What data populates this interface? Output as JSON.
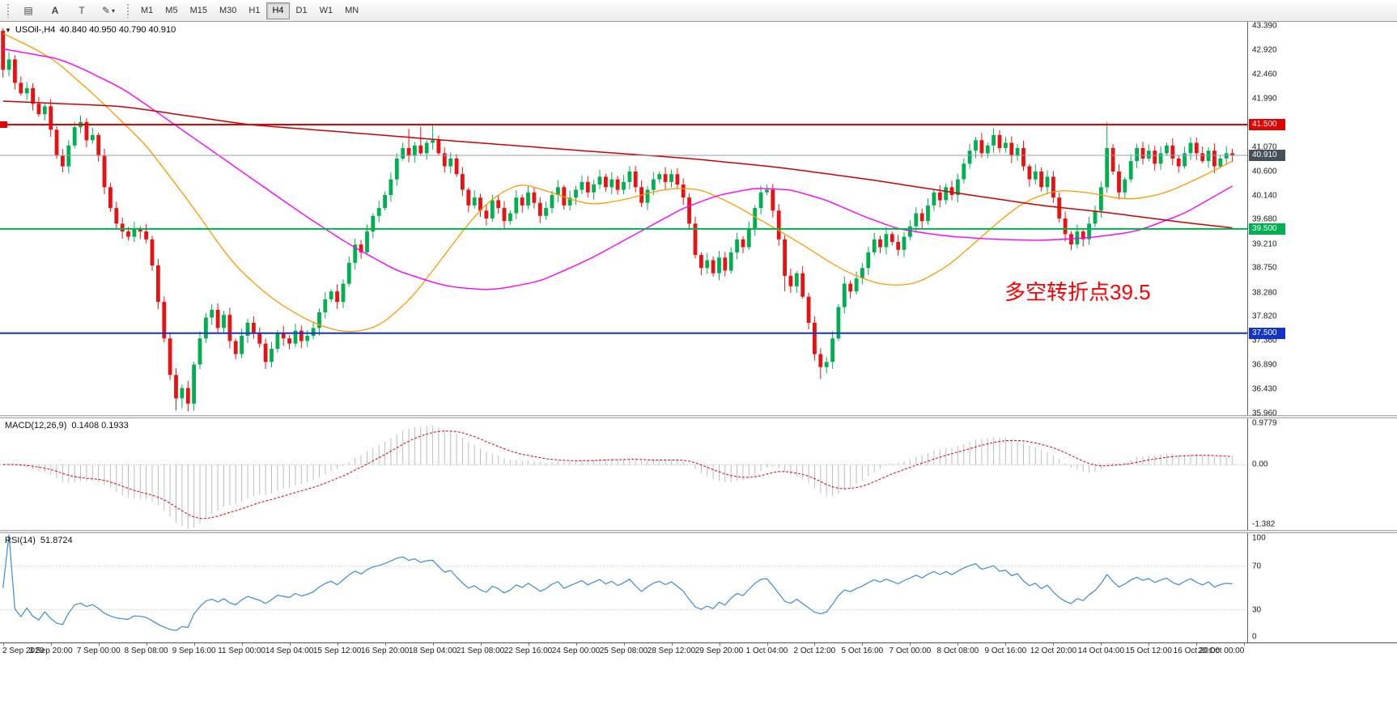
{
  "toolbar": {
    "tool_buttons": [
      {
        "name": "chart-window-icon",
        "glyph": "▤"
      },
      {
        "name": "text-label-icon",
        "glyph": "A"
      },
      {
        "name": "template-icon",
        "glyph": "T"
      },
      {
        "name": "draw-tools-icon",
        "glyph": "✎",
        "dropdown": true
      }
    ],
    "timeframes": [
      "M1",
      "M5",
      "M15",
      "M30",
      "H1",
      "H4",
      "D1",
      "W1",
      "MN"
    ],
    "active_timeframe": "H4"
  },
  "chart_data": [
    {
      "type": "candlestick",
      "title_symbol": "USOil-,H4",
      "title_ohlc": "40.840 40.950 40.790 40.910",
      "ylim": [
        35.93,
        43.47
      ],
      "y_ticks": [
        "43.390",
        "42.920",
        "42.460",
        "41.990",
        "41.530",
        "41.070",
        "40.600",
        "40.140",
        "39.680",
        "39.210",
        "38.750",
        "38.280",
        "37.820",
        "37.360",
        "36.890",
        "36.430",
        "35.960"
      ],
      "colors": {
        "up": "#00B050",
        "down": "#E81212"
      },
      "first_open": 43.3,
      "closes": [
        42.55,
        42.75,
        42.3,
        42.1,
        42.2,
        41.9,
        41.7,
        41.85,
        41.4,
        40.9,
        40.7,
        41.1,
        41.45,
        41.55,
        41.2,
        41.3,
        40.9,
        40.3,
        39.9,
        39.6,
        39.45,
        39.35,
        39.5,
        39.45,
        39.3,
        38.8,
        38.1,
        37.4,
        36.7,
        36.25,
        36.45,
        36.15,
        36.9,
        37.4,
        37.8,
        37.95,
        37.6,
        37.85,
        37.35,
        37.1,
        37.45,
        37.7,
        37.5,
        37.3,
        36.95,
        37.2,
        37.5,
        37.4,
        37.3,
        37.55,
        37.35,
        37.45,
        37.6,
        37.9,
        38.15,
        38.3,
        38.1,
        38.45,
        38.85,
        39.2,
        39.05,
        39.45,
        39.75,
        39.9,
        40.15,
        40.45,
        40.85,
        41.05,
        40.9,
        41.1,
        40.95,
        41.15,
        41.2,
        40.95,
        40.7,
        40.85,
        40.55,
        40.25,
        39.95,
        40.1,
        39.85,
        39.7,
        40.05,
        39.9,
        39.65,
        39.8,
        40.1,
        39.95,
        40.2,
        40.0,
        39.75,
        39.9,
        40.15,
        40.3,
        39.95,
        40.1,
        40.25,
        40.4,
        40.2,
        40.35,
        40.5,
        40.3,
        40.45,
        40.25,
        40.4,
        40.6,
        40.3,
        40.0,
        40.25,
        40.45,
        40.55,
        40.4,
        40.55,
        40.35,
        40.1,
        39.6,
        39.0,
        38.75,
        38.9,
        38.65,
        38.95,
        38.7,
        39.05,
        39.3,
        39.15,
        39.5,
        39.9,
        40.2,
        40.25,
        39.85,
        39.3,
        38.6,
        38.4,
        38.65,
        38.2,
        37.7,
        37.1,
        36.85,
        36.95,
        37.4,
        38.0,
        38.45,
        38.3,
        38.55,
        38.75,
        39.05,
        39.3,
        39.15,
        39.4,
        39.25,
        39.1,
        39.35,
        39.55,
        39.8,
        39.65,
        39.95,
        40.2,
        40.05,
        40.3,
        40.15,
        40.45,
        40.75,
        41.0,
        41.2,
        40.95,
        41.1,
        41.3,
        41.05,
        41.15,
        40.9,
        41.05,
        40.7,
        40.45,
        40.6,
        40.3,
        40.5,
        40.1,
        39.7,
        39.4,
        39.2,
        39.45,
        39.3,
        39.6,
        39.85,
        40.3,
        41.05,
        40.6,
        40.2,
        40.45,
        40.8,
        41.05,
        40.85,
        41.0,
        40.75,
        40.95,
        41.1,
        40.85,
        40.7,
        40.95,
        41.15,
        40.95,
        40.8,
        41.0,
        40.7,
        40.85,
        40.95,
        40.91
      ],
      "wick_overrides": {
        "0": {
          "h": 43.35,
          "l": 42.4
        },
        "29": {
          "l": 36.02
        },
        "30": {
          "l": 36.06
        },
        "31": {
          "l": 36.0
        },
        "68": {
          "h": 41.42
        },
        "70": {
          "h": 41.46
        },
        "72": {
          "h": 41.52
        },
        "131": {
          "l": 38.3
        },
        "137": {
          "l": 36.62
        },
        "185": {
          "h": 41.55
        }
      },
      "hlines": [
        {
          "value": 41.5,
          "color": "#E00000",
          "badge": "41.500",
          "width": 2
        },
        {
          "value": 39.5,
          "color": "#00B050",
          "badge": "39.500",
          "width": 2
        },
        {
          "value": 37.5,
          "color": "#1133CC",
          "badge": "37.500",
          "width": 2
        }
      ],
      "left_tag": {
        "value": 41.5,
        "color": "#E00000"
      },
      "current_price": {
        "value": 40.91,
        "badge": "40.910",
        "line_color": "#8CA0B3",
        "badge_color": "#465059"
      },
      "ma_lines": [
        {
          "name": "ma-short-orange",
          "color": "#FF9900",
          "width": 1.3,
          "points": [
            [
              0,
              43.25
            ],
            [
              8,
              42.8
            ],
            [
              16,
              42.0
            ],
            [
              24,
              41.1
            ],
            [
              32,
              39.9
            ],
            [
              38,
              38.9
            ],
            [
              44,
              38.25
            ],
            [
              50,
              37.8
            ],
            [
              56,
              37.52
            ],
            [
              62,
              37.55
            ],
            [
              68,
              38.1
            ],
            [
              74,
              39.0
            ],
            [
              80,
              39.9
            ],
            [
              86,
              40.4
            ],
            [
              92,
              40.2
            ],
            [
              98,
              39.95
            ],
            [
              104,
              40.05
            ],
            [
              110,
              40.25
            ],
            [
              116,
              40.3
            ],
            [
              122,
              40.0
            ],
            [
              128,
              39.6
            ],
            [
              134,
              39.2
            ],
            [
              140,
              38.75
            ],
            [
              146,
              38.45
            ],
            [
              152,
              38.4
            ],
            [
              158,
              38.75
            ],
            [
              164,
              39.35
            ],
            [
              170,
              39.95
            ],
            [
              176,
              40.25
            ],
            [
              182,
              40.2
            ],
            [
              188,
              40.05
            ],
            [
              194,
              40.15
            ],
            [
              200,
              40.45
            ],
            [
              206,
              40.8
            ]
          ]
        },
        {
          "name": "ma-mid-magenta",
          "color": "#FF00FF",
          "width": 1.4,
          "points": [
            [
              0,
              42.95
            ],
            [
              10,
              42.75
            ],
            [
              20,
              42.2
            ],
            [
              30,
              41.4
            ],
            [
              40,
              40.6
            ],
            [
              50,
              39.8
            ],
            [
              58,
              39.2
            ],
            [
              66,
              38.7
            ],
            [
              74,
              38.4
            ],
            [
              82,
              38.32
            ],
            [
              90,
              38.5
            ],
            [
              98,
              38.9
            ],
            [
              106,
              39.4
            ],
            [
              114,
              39.9
            ],
            [
              120,
              40.15
            ],
            [
              126,
              40.28
            ],
            [
              132,
              40.25
            ],
            [
              138,
              40.05
            ],
            [
              144,
              39.75
            ],
            [
              150,
              39.5
            ],
            [
              158,
              39.36
            ],
            [
              166,
              39.3
            ],
            [
              174,
              39.28
            ],
            [
              182,
              39.33
            ],
            [
              190,
              39.45
            ],
            [
              198,
              39.8
            ],
            [
              206,
              40.32
            ]
          ]
        },
        {
          "name": "ma-long-red",
          "color": "#CC0000",
          "width": 1.5,
          "points": [
            [
              0,
              41.95
            ],
            [
              20,
              41.85
            ],
            [
              41,
              41.5
            ],
            [
              60,
              41.33
            ],
            [
              74,
              41.2
            ],
            [
              97,
              41.0
            ],
            [
              115,
              40.85
            ],
            [
              130,
              40.68
            ],
            [
              145,
              40.45
            ],
            [
              162,
              40.15
            ],
            [
              174,
              39.95
            ],
            [
              186,
              39.8
            ],
            [
              196,
              39.65
            ],
            [
              206,
              39.52
            ]
          ]
        }
      ],
      "annotation": {
        "text": "多空转折点39.5",
        "color": "#FF0000",
        "x_frac": 0.805,
        "price": 38.35
      }
    },
    {
      "type": "macd-histogram",
      "title": "MACD(12,26,9)",
      "values_text": "0.1408 0.1933",
      "params": {
        "fast": 12,
        "slow": 26,
        "signal": 9
      },
      "ylim": [
        -1.382,
        0.9779
      ],
      "y_ticks": [
        "0.9779",
        "0.00",
        "-1.382"
      ],
      "histogram_color": "#BDBDBD",
      "signal_color": "#DD0000"
    },
    {
      "type": "rsi-line",
      "title": "RSI(14)",
      "value_text": "51.8724",
      "period": 14,
      "ylim": [
        0,
        100
      ],
      "y_ticks": [
        "100",
        "70",
        "30",
        "0"
      ],
      "levels": [
        70,
        30
      ],
      "line_color": "#3B8BD8"
    }
  ],
  "time_axis": {
    "labels": [
      "2 Sep 2020",
      "3 Sep 20:00",
      "7 Sep 00:00",
      "8 Sep 08:00",
      "9 Sep 16:00",
      "11 Sep 00:00",
      "14 Sep 04:00",
      "15 Sep 12:00",
      "16 Sep 20:00",
      "18 Sep 04:00",
      "21 Sep 08:00",
      "22 Sep 16:00",
      "24 Sep 00:00",
      "25 Sep 08:00",
      "28 Sep 12:00",
      "29 Sep 20:00",
      "1 Oct 04:00",
      "2 Oct 12:00",
      "5 Oct 16:00",
      "7 Oct 00:00",
      "8 Oct 08:00",
      "9 Oct 16:00",
      "12 Oct 20:00",
      "14 Oct 04:00",
      "15 Oct 12:00",
      "16 Oct 20:00",
      "20 Oct 00:00"
    ]
  }
}
